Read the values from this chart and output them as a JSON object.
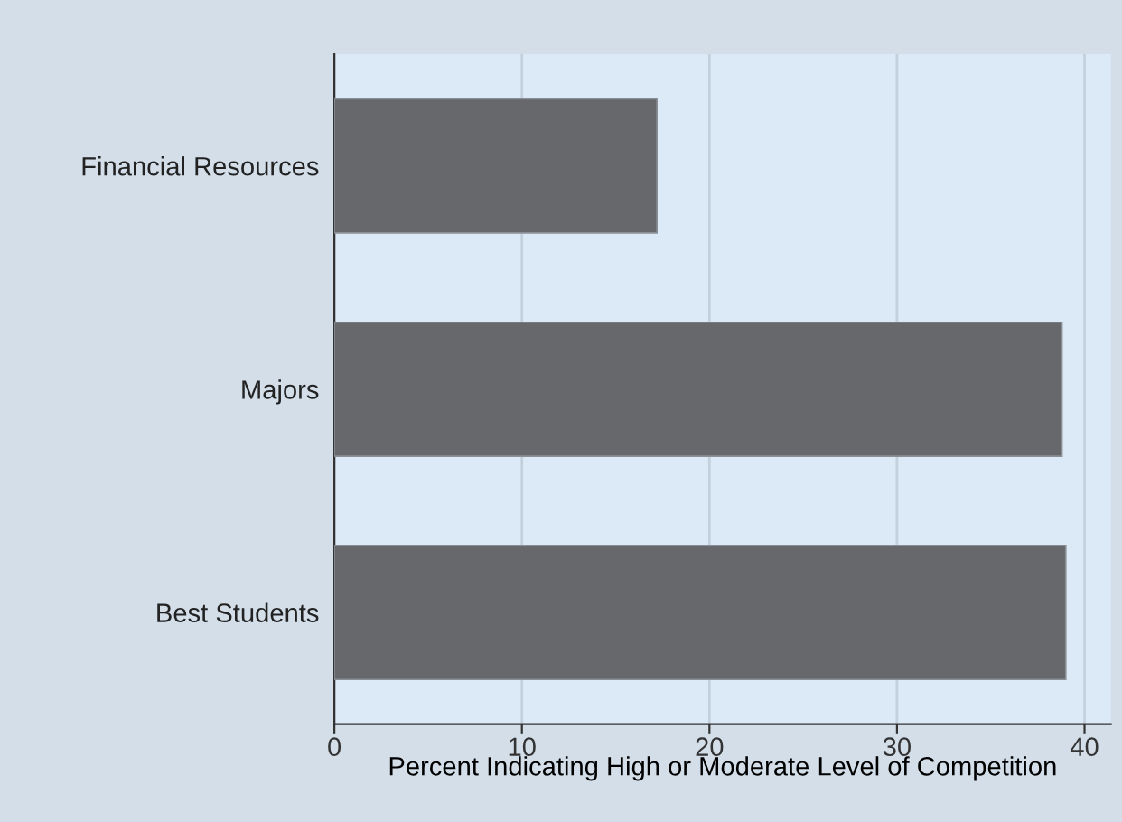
{
  "chart_data": {
    "type": "bar",
    "orientation": "horizontal",
    "categories": [
      "Financial Resources",
      "Majors",
      "Best Students"
    ],
    "values": [
      17.2,
      38.8,
      39.0
    ],
    "color": "#66686c",
    "xlabel": "Percent Indicating High or Moderate Level of Competition",
    "xlim": [
      0,
      41.4
    ],
    "xticks": [
      0,
      10,
      20,
      30,
      40
    ],
    "grid": "x",
    "legend": false
  }
}
